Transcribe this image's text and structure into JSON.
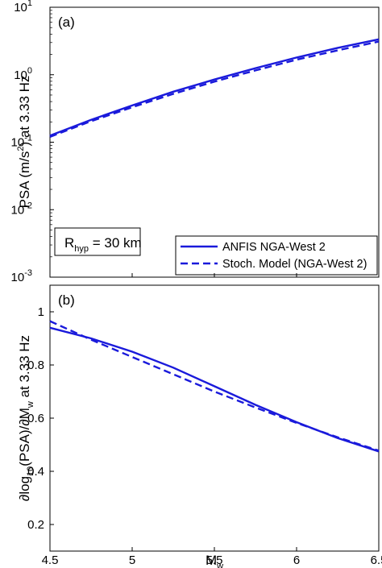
{
  "colors": {
    "series": "#1a1adb",
    "axis": "#000000"
  },
  "chart_data": [
    {
      "type": "line",
      "panel_label": "(a)",
      "ylabel_main": "PSA (m/s",
      "ylabel_sup": "2",
      "ylabel_tail": ") at 3.33 Hz",
      "xlim": [
        4.5,
        6.5
      ],
      "ylim": [
        0.001,
        10
      ],
      "yscale": "log",
      "yticks": [
        {
          "base": "10",
          "exp": "-3",
          "v": 0.001
        },
        {
          "base": "10",
          "exp": "-2",
          "v": 0.01
        },
        {
          "base": "10",
          "exp": "-1",
          "v": 0.1
        },
        {
          "base": "10",
          "exp": "0",
          "v": 1
        },
        {
          "base": "10",
          "exp": "1",
          "v": 10
        }
      ],
      "annotation": {
        "r": "R",
        "sub": "hyp",
        "rest": " = 30 km"
      },
      "legend": {
        "placement": "bottom-right"
      },
      "series": [
        {
          "name": "ANFIS NGA-West 2",
          "style": "solid",
          "x": [
            4.5,
            4.75,
            5.0,
            5.25,
            5.5,
            5.75,
            6.0,
            6.25,
            6.5
          ],
          "y": [
            0.125,
            0.215,
            0.35,
            0.56,
            0.85,
            1.25,
            1.8,
            2.5,
            3.35
          ]
        },
        {
          "name": "Stoch. Model (NGA-West 2)",
          "style": "dashed",
          "x": [
            4.5,
            4.75,
            5.0,
            5.25,
            5.5,
            5.75,
            6.0,
            6.25,
            6.5
          ],
          "y": [
            0.12,
            0.205,
            0.33,
            0.52,
            0.79,
            1.16,
            1.67,
            2.3,
            3.1
          ]
        }
      ]
    },
    {
      "type": "line",
      "panel_label": "(b)",
      "ylabel_a": "∂log",
      "ylabel_a_sub": "10",
      "ylabel_b": "(PSA)/∂M",
      "ylabel_b_sub": "w",
      "ylabel_c": " at 3.33 Hz",
      "xlabel": "M",
      "xlabel_sub": "w",
      "xlim": [
        4.5,
        6.5
      ],
      "ylim": [
        0.1,
        1.1
      ],
      "yticks": [
        "0.2",
        "0.4",
        "0.6",
        "0.8",
        "1"
      ],
      "xticks": [
        "4.5",
        "5",
        "5.5",
        "6",
        "6.5"
      ],
      "series": [
        {
          "name": "ANFIS NGA-West 2",
          "style": "solid",
          "x": [
            4.5,
            4.75,
            5.0,
            5.25,
            5.5,
            5.75,
            6.0,
            6.25,
            6.5
          ],
          "y": [
            0.94,
            0.9,
            0.85,
            0.79,
            0.72,
            0.65,
            0.585,
            0.525,
            0.475
          ]
        },
        {
          "name": "Stoch. Model (NGA-West 2)",
          "style": "dashed",
          "x": [
            4.5,
            4.75,
            5.0,
            5.25,
            5.5,
            5.75,
            6.0,
            6.25,
            6.5
          ],
          "y": [
            0.965,
            0.895,
            0.83,
            0.765,
            0.7,
            0.64,
            0.582,
            0.528,
            0.478
          ]
        }
      ]
    }
  ]
}
